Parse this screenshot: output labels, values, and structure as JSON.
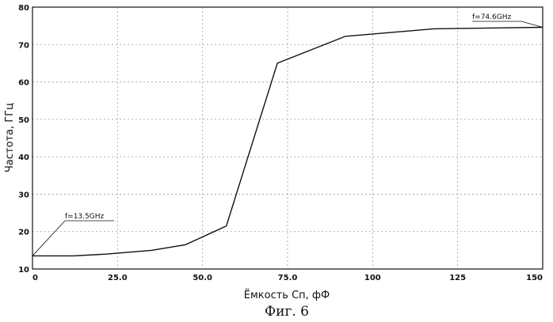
{
  "chart_data": {
    "type": "line",
    "title": "",
    "xlabel": "Ёмкость Сп, фФ",
    "ylabel": "Частота, ГГц",
    "xlim": [
      0,
      150
    ],
    "ylim": [
      10,
      80
    ],
    "grid": true,
    "x_ticks": [
      0,
      25,
      50,
      75,
      100,
      125,
      150
    ],
    "x_tick_labels": [
      "0",
      "25.0",
      "50.0",
      "75.0",
      "100",
      "125",
      "150"
    ],
    "y_ticks": [
      10,
      20,
      30,
      40,
      50,
      60,
      70,
      80
    ],
    "y_tick_labels": [
      "10",
      "20",
      "30",
      "40",
      "50",
      "60",
      "70",
      "80"
    ],
    "series": [
      {
        "x": [
          0,
          12,
          22,
          35,
          45,
          57,
          72,
          92,
          118,
          150
        ],
        "y": [
          13.5,
          13.5,
          14.0,
          15.0,
          16.5,
          21.5,
          65.0,
          72.2,
          74.2,
          74.6
        ]
      }
    ],
    "annotations": [
      {
        "text": "f=13.5GHz",
        "x": 0,
        "y": 13.5
      },
      {
        "text": "f=74.6GHz",
        "x": 150,
        "y": 74.6
      }
    ],
    "caption": "Фиг. 6"
  }
}
